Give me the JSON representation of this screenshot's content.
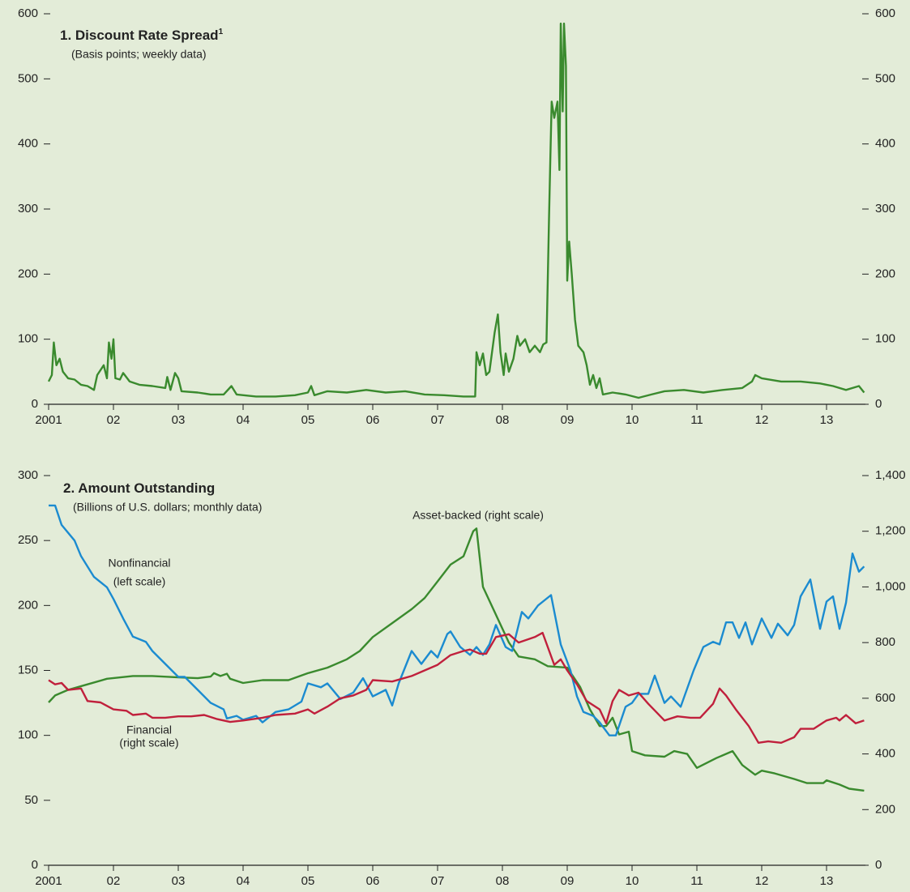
{
  "chart_data": [
    {
      "type": "line",
      "title": "1. Discount Rate Spread",
      "title_note": "1",
      "subtitle": "(Basis points; weekly data)",
      "xlim": [
        2001,
        2013.6
      ],
      "xticks": [
        2001,
        {
          "value": 2002,
          "label": "02"
        },
        {
          "value": 2003,
          "label": "03"
        },
        {
          "value": 2004,
          "label": "04"
        },
        {
          "value": 2005,
          "label": "05"
        },
        {
          "value": 2006,
          "label": "06"
        },
        {
          "value": 2007,
          "label": "07"
        },
        {
          "value": 2008,
          "label": "08"
        },
        {
          "value": 2009,
          "label": "09"
        },
        {
          "value": 2010,
          "label": "10"
        },
        {
          "value": 2011,
          "label": "11"
        },
        {
          "value": 2012,
          "label": "12"
        },
        {
          "value": 2013,
          "label": "13"
        }
      ],
      "ylim": [
        0,
        600
      ],
      "yticks": [
        0,
        100,
        200,
        300,
        400,
        500,
        600
      ],
      "y2lim": [
        0,
        600
      ],
      "y2ticks": [
        0,
        100,
        200,
        300,
        400,
        500,
        600
      ],
      "series": [
        {
          "color": "#3a8a2e",
          "x": [
            2001.0,
            2001.05,
            2001.08,
            2001.12,
            2001.17,
            2001.22,
            2001.3,
            2001.4,
            2001.5,
            2001.6,
            2001.7,
            2001.75,
            2001.85,
            2001.9,
            2001.93,
            2001.97,
            2002.0,
            2002.03,
            2002.1,
            2002.15,
            2002.25,
            2002.4,
            2002.6,
            2002.8,
            2002.83,
            2002.88,
            2002.95,
            2003.0,
            2003.05,
            2003.3,
            2003.5,
            2003.7,
            2003.82,
            2003.9,
            2004.2,
            2004.5,
            2004.8,
            2005.0,
            2005.05,
            2005.1,
            2005.3,
            2005.6,
            2005.9,
            2006.2,
            2006.5,
            2006.8,
            2007.1,
            2007.4,
            2007.58,
            2007.6,
            2007.65,
            2007.7,
            2007.75,
            2007.8,
            2007.88,
            2007.93,
            2007.97,
            2008.02,
            2008.05,
            2008.1,
            2008.17,
            2008.23,
            2008.27,
            2008.35,
            2008.42,
            2008.5,
            2008.58,
            2008.63,
            2008.68,
            2008.72,
            2008.74,
            2008.76,
            2008.8,
            2008.85,
            2008.88,
            2008.9,
            2008.93,
            2008.95,
            2008.98,
            2009.0,
            2009.03,
            2009.07,
            2009.12,
            2009.17,
            2009.25,
            2009.3,
            2009.35,
            2009.4,
            2009.45,
            2009.5,
            2009.55,
            2009.7,
            2009.9,
            2010.1,
            2010.3,
            2010.5,
            2010.8,
            2011.1,
            2011.4,
            2011.7,
            2011.85,
            2011.9,
            2012.0,
            2012.3,
            2012.6,
            2012.9,
            2013.1,
            2013.3,
            2013.5,
            2013.58
          ],
          "values": [
            35,
            45,
            95,
            60,
            70,
            50,
            40,
            38,
            30,
            28,
            22,
            45,
            60,
            40,
            95,
            70,
            100,
            40,
            38,
            48,
            35,
            30,
            28,
            25,
            42,
            22,
            48,
            40,
            20,
            18,
            15,
            15,
            28,
            15,
            12,
            12,
            14,
            18,
            28,
            14,
            20,
            18,
            22,
            18,
            20,
            15,
            14,
            12,
            12,
            80,
            60,
            78,
            45,
            50,
            110,
            138,
            80,
            45,
            78,
            50,
            70,
            105,
            90,
            100,
            80,
            90,
            80,
            92,
            95,
            290,
            380,
            465,
            440,
            465,
            360,
            585,
            450,
            585,
            520,
            190,
            250,
            200,
            130,
            90,
            80,
            60,
            30,
            45,
            25,
            40,
            15,
            18,
            15,
            10,
            15,
            20,
            22,
            18,
            22,
            25,
            35,
            45,
            40,
            35,
            35,
            32,
            28,
            22,
            28,
            18
          ]
        }
      ],
      "annotations": []
    },
    {
      "type": "line",
      "title": "2. Amount Outstanding",
      "subtitle": "(Billions of U.S. dollars; monthly data)",
      "xlim": [
        2001,
        2013.6
      ],
      "xticks": [
        2001,
        {
          "value": 2002,
          "label": "02"
        },
        {
          "value": 2003,
          "label": "03"
        },
        {
          "value": 2004,
          "label": "04"
        },
        {
          "value": 2005,
          "label": "05"
        },
        {
          "value": 2006,
          "label": "06"
        },
        {
          "value": 2007,
          "label": "07"
        },
        {
          "value": 2008,
          "label": "08"
        },
        {
          "value": 2009,
          "label": "09"
        },
        {
          "value": 2010,
          "label": "10"
        },
        {
          "value": 2011,
          "label": "11"
        },
        {
          "value": 2012,
          "label": "12"
        },
        {
          "value": 2013,
          "label": "13"
        }
      ],
      "ylim": [
        0,
        300
      ],
      "yticks": [
        0,
        50,
        100,
        150,
        200,
        250,
        300
      ],
      "y2lim": [
        0,
        1400
      ],
      "y2ticks": [
        0,
        200,
        400,
        600,
        800,
        {
          "value": 1000,
          "label": "1,000"
        },
        {
          "value": 1200,
          "label": "1,200"
        },
        {
          "value": 1400,
          "label": "1,400"
        }
      ],
      "series": [
        {
          "color": "#3a8a2e",
          "axis": "y2",
          "x": [
            2001.0,
            2001.1,
            2001.3,
            2001.6,
            2001.9,
            2002.3,
            2002.6,
            2003.0,
            2003.3,
            2003.5,
            2003.55,
            2003.65,
            2003.75,
            2003.8,
            2004.0,
            2004.3,
            2004.7,
            2005.0,
            2005.3,
            2005.6,
            2005.8,
            2006.0,
            2006.3,
            2006.6,
            2006.8,
            2007.0,
            2007.2,
            2007.4,
            2007.55,
            2007.6,
            2007.7,
            2007.9,
            2008.1,
            2008.25,
            2008.5,
            2008.7,
            2009.0,
            2009.2,
            2009.35,
            2009.5,
            2009.6,
            2009.7,
            2009.8,
            2009.95,
            2010.0,
            2010.2,
            2010.5,
            2010.65,
            2010.85,
            2011.0,
            2011.3,
            2011.55,
            2011.7,
            2011.9,
            2012.0,
            2012.2,
            2012.5,
            2012.7,
            2012.95,
            2013.0,
            2013.2,
            2013.35,
            2013.58
          ],
          "values": [
            585,
            610,
            630,
            650,
            670,
            680,
            680,
            675,
            672,
            678,
            690,
            680,
            688,
            670,
            655,
            665,
            665,
            690,
            710,
            740,
            770,
            820,
            870,
            920,
            960,
            1020,
            1080,
            1110,
            1200,
            1210,
            1000,
            900,
            800,
            750,
            740,
            715,
            710,
            640,
            560,
            500,
            500,
            530,
            470,
            480,
            410,
            395,
            390,
            410,
            400,
            350,
            385,
            410,
            360,
            325,
            340,
            330,
            310,
            295,
            295,
            305,
            290,
            275,
            268
          ]
        },
        {
          "color": "#1b8bd0",
          "x": [
            2001.0,
            2001.1,
            2001.2,
            2001.4,
            2001.5,
            2001.7,
            2001.9,
            2002.0,
            2002.15,
            2002.3,
            2002.5,
            2002.6,
            2002.8,
            2003.0,
            2003.1,
            2003.3,
            2003.5,
            2003.7,
            2003.75,
            2003.9,
            2004.0,
            2004.2,
            2004.3,
            2004.5,
            2004.7,
            2004.9,
            2005.0,
            2005.2,
            2005.3,
            2005.5,
            2005.7,
            2005.85,
            2006.0,
            2006.2,
            2006.3,
            2006.4,
            2006.6,
            2006.75,
            2006.9,
            2007.0,
            2007.15,
            2007.2,
            2007.35,
            2007.5,
            2007.6,
            2007.7,
            2007.8,
            2007.9,
            2008.05,
            2008.15,
            2008.3,
            2008.4,
            2008.55,
            2008.75,
            2008.9,
            2009.05,
            2009.15,
            2009.25,
            2009.4,
            2009.5,
            2009.65,
            2009.75,
            2009.9,
            2010.0,
            2010.1,
            2010.25,
            2010.35,
            2010.5,
            2010.6,
            2010.75,
            2010.95,
            2011.1,
            2011.25,
            2011.35,
            2011.45,
            2011.55,
            2011.65,
            2011.75,
            2011.85,
            2012.0,
            2012.15,
            2012.25,
            2012.4,
            2012.5,
            2012.6,
            2012.75,
            2012.9,
            2013.0,
            2013.1,
            2013.2,
            2013.3,
            2013.4,
            2013.5,
            2013.58
          ],
          "values": [
            277,
            277,
            262,
            250,
            238,
            222,
            214,
            205,
            190,
            176,
            172,
            165,
            155,
            145,
            145,
            135,
            125,
            120,
            113,
            115,
            112,
            115,
            110,
            118,
            120,
            126,
            140,
            137,
            140,
            128,
            133,
            144,
            130,
            135,
            123,
            140,
            165,
            155,
            165,
            160,
            178,
            180,
            168,
            162,
            168,
            162,
            170,
            185,
            168,
            165,
            195,
            190,
            200,
            208,
            170,
            150,
            130,
            118,
            115,
            110,
            100,
            100,
            122,
            125,
            132,
            132,
            146,
            125,
            130,
            122,
            150,
            168,
            172,
            170,
            187,
            187,
            175,
            187,
            170,
            190,
            175,
            186,
            177,
            185,
            207,
            220,
            182,
            203,
            207,
            182,
            202,
            240,
            226,
            230
          ]
        },
        {
          "color": "#c0203c",
          "axis": "y2",
          "x": [
            2001.0,
            2001.1,
            2001.2,
            2001.3,
            2001.5,
            2001.6,
            2001.8,
            2002.0,
            2002.2,
            2002.3,
            2002.5,
            2002.6,
            2002.8,
            2003.0,
            2003.2,
            2003.4,
            2003.6,
            2003.8,
            2004.0,
            2004.3,
            2004.5,
            2004.8,
            2005.0,
            2005.1,
            2005.3,
            2005.5,
            2005.7,
            2005.9,
            2006.0,
            2006.3,
            2006.6,
            2006.8,
            2007.0,
            2007.2,
            2007.4,
            2007.5,
            2007.65,
            2007.75,
            2007.9,
            2008.1,
            2008.25,
            2008.5,
            2008.62,
            2008.8,
            2008.9,
            2009.0,
            2009.15,
            2009.3,
            2009.5,
            2009.6,
            2009.7,
            2009.8,
            2009.95,
            2010.1,
            2010.25,
            2010.5,
            2010.7,
            2010.9,
            2011.05,
            2011.25,
            2011.35,
            2011.45,
            2011.6,
            2011.8,
            2011.95,
            2012.1,
            2012.3,
            2012.5,
            2012.6,
            2012.8,
            2013.0,
            2013.15,
            2013.2,
            2013.3,
            2013.45,
            2013.58
          ],
          "values": [
            665,
            650,
            655,
            630,
            635,
            590,
            585,
            560,
            555,
            540,
            545,
            530,
            530,
            535,
            535,
            540,
            525,
            515,
            520,
            530,
            540,
            545,
            560,
            545,
            570,
            600,
            610,
            630,
            665,
            660,
            680,
            700,
            720,
            755,
            770,
            775,
            760,
            760,
            820,
            830,
            800,
            820,
            835,
            720,
            740,
            700,
            650,
            590,
            560,
            510,
            590,
            630,
            610,
            620,
            580,
            520,
            535,
            530,
            530,
            580,
            635,
            610,
            560,
            500,
            440,
            445,
            440,
            460,
            490,
            490,
            520,
            530,
            520,
            540,
            510,
            520
          ]
        }
      ],
      "annotations": [
        [
          "Asset-backed (right scale)"
        ],
        [
          "Nonfinancial",
          "(left scale)"
        ],
        [
          "Financial",
          "(right scale)"
        ]
      ]
    }
  ]
}
